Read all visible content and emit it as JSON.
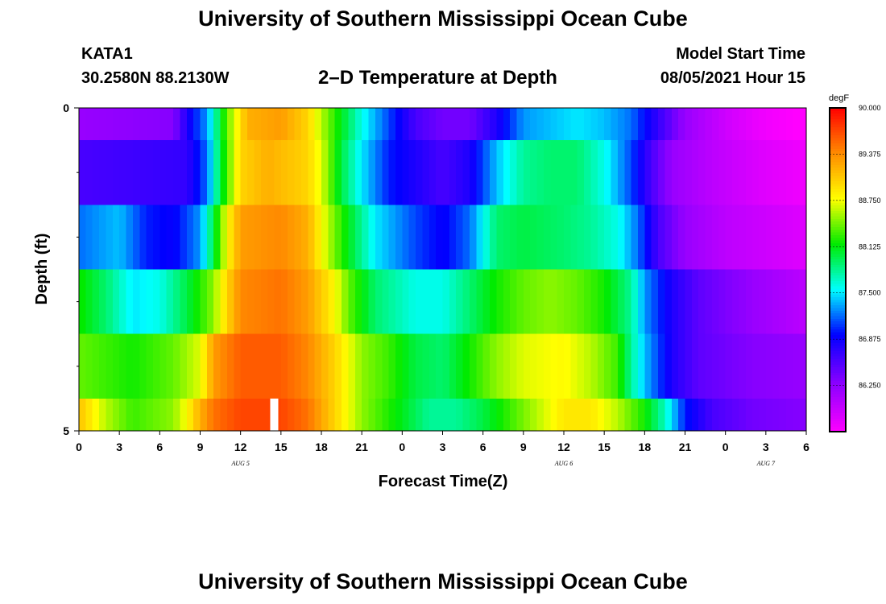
{
  "page": {
    "title_top": "University of Southern Mississippi Ocean Cube",
    "title_bottom": "University of Southern Mississippi Ocean Cube",
    "station": "KATA1",
    "coords": "30.2580N  88.2130W",
    "subtitle": "2–D Temperature at Depth",
    "model_start_label": "Model Start Time",
    "model_start_value": "08/05/2021 Hour 15"
  },
  "chart_data": {
    "type": "heatmap",
    "title": "2–D Temperature at Depth",
    "xlabel": "Forecast Time(Z)",
    "ylabel": "Depth (ft)",
    "x_start_hour": 0,
    "x_end_hour": 54,
    "x_tick_labels": [
      "0",
      "3",
      "6",
      "9",
      "12",
      "15",
      "18",
      "21",
      "0",
      "3",
      "6",
      "9",
      "12",
      "15",
      "18",
      "21",
      "0",
      "3",
      "6"
    ],
    "date_labels": [
      {
        "hour": 12,
        "text": "AUG 5"
      },
      {
        "hour": 36,
        "text": "AUG 6"
      },
      {
        "hour": 51,
        "text": "AUG 7"
      }
    ],
    "y_tick_labels": [
      "0",
      "5"
    ],
    "ylim": [
      0,
      5
    ],
    "layers_depth_ft": [
      0,
      1,
      2,
      3,
      4,
      5
    ],
    "colorbar": {
      "unit": "degF",
      "min": 85.625,
      "max": 90.0,
      "tick_labels": [
        "90.000",
        "89.375",
        "88.750",
        "88.125",
        "87.500",
        "86.875",
        "86.250"
      ]
    },
    "current_time_marker_hour": 14.5,
    "layer_profiles": [
      {
        "depth_top": 0,
        "depth_bottom": 0.5,
        "points": [
          [
            0,
            86.2
          ],
          [
            7,
            86.3
          ],
          [
            8,
            86.8
          ],
          [
            9.5,
            87.3
          ],
          [
            11,
            88.4
          ],
          [
            12.5,
            89.2
          ],
          [
            15,
            89.3
          ],
          [
            17,
            89.0
          ],
          [
            18,
            88.6
          ],
          [
            19.5,
            88.1
          ],
          [
            21,
            87.6
          ],
          [
            23,
            87.1
          ],
          [
            25,
            86.6
          ],
          [
            27,
            86.4
          ],
          [
            29,
            86.4
          ],
          [
            31,
            86.8
          ],
          [
            33,
            87.3
          ],
          [
            35,
            87.4
          ],
          [
            37,
            87.5
          ],
          [
            39,
            87.4
          ],
          [
            41,
            87.2
          ],
          [
            43,
            86.7
          ],
          [
            45,
            86.2
          ],
          [
            48,
            85.9
          ],
          [
            51,
            85.7
          ],
          [
            54,
            85.6
          ]
        ]
      },
      {
        "depth_top": 0.5,
        "depth_bottom": 1.5,
        "points": [
          [
            0,
            86.6
          ],
          [
            8,
            86.7
          ],
          [
            9.5,
            87.2
          ],
          [
            10.5,
            88.0
          ],
          [
            12,
            89.0
          ],
          [
            14,
            89.2
          ],
          [
            17,
            89.0
          ],
          [
            18,
            88.7
          ],
          [
            19.5,
            88.0
          ],
          [
            21,
            87.5
          ],
          [
            23,
            87.0
          ],
          [
            25,
            86.8
          ],
          [
            27,
            86.6
          ],
          [
            29,
            86.8
          ],
          [
            31,
            87.4
          ],
          [
            33,
            87.8
          ],
          [
            35,
            87.9
          ],
          [
            37,
            87.9
          ],
          [
            39,
            87.6
          ],
          [
            41,
            87.1
          ],
          [
            42.5,
            86.6
          ],
          [
            44,
            86.2
          ],
          [
            47,
            86.0
          ],
          [
            51,
            85.8
          ],
          [
            54,
            85.7
          ]
        ]
      },
      {
        "depth_top": 1.5,
        "depth_bottom": 2.5,
        "points": [
          [
            0,
            87.2
          ],
          [
            3,
            87.4
          ],
          [
            5,
            87.0
          ],
          [
            7,
            86.9
          ],
          [
            9,
            87.3
          ],
          [
            10,
            88.0
          ],
          [
            11,
            88.8
          ],
          [
            12,
            89.3
          ],
          [
            15,
            89.4
          ],
          [
            17,
            89.2
          ],
          [
            18.5,
            88.6
          ],
          [
            20,
            88.1
          ],
          [
            22,
            87.5
          ],
          [
            25,
            87.1
          ],
          [
            27,
            86.9
          ],
          [
            29,
            87.2
          ],
          [
            31,
            87.9
          ],
          [
            33,
            88.0
          ],
          [
            36,
            87.9
          ],
          [
            38,
            87.8
          ],
          [
            40,
            87.6
          ],
          [
            41.5,
            87.2
          ],
          [
            43,
            86.6
          ],
          [
            45,
            86.2
          ],
          [
            48,
            86.0
          ],
          [
            51,
            85.9
          ],
          [
            54,
            85.8
          ]
        ]
      },
      {
        "depth_top": 2.5,
        "depth_bottom": 3.5,
        "points": [
          [
            0,
            88.2
          ],
          [
            2,
            87.9
          ],
          [
            4,
            87.5
          ],
          [
            6,
            87.6
          ],
          [
            8,
            88.0
          ],
          [
            10,
            88.5
          ],
          [
            11,
            89.0
          ],
          [
            12,
            89.4
          ],
          [
            15,
            89.5
          ],
          [
            17,
            89.3
          ],
          [
            19,
            88.8
          ],
          [
            20,
            88.4
          ],
          [
            22,
            87.9
          ],
          [
            25,
            87.6
          ],
          [
            27,
            87.6
          ],
          [
            29,
            87.9
          ],
          [
            31,
            88.2
          ],
          [
            33,
            88.4
          ],
          [
            35,
            88.5
          ],
          [
            37,
            88.4
          ],
          [
            39,
            88.2
          ],
          [
            41,
            87.8
          ],
          [
            42,
            87.3
          ],
          [
            44,
            86.8
          ],
          [
            46,
            86.5
          ],
          [
            50,
            86.2
          ],
          [
            54,
            86.0
          ]
        ]
      },
      {
        "depth_top": 3.5,
        "depth_bottom": 4.5,
        "points": [
          [
            0,
            88.4
          ],
          [
            4,
            88.2
          ],
          [
            7,
            88.4
          ],
          [
            9,
            88.7
          ],
          [
            10,
            89.3
          ],
          [
            12,
            89.6
          ],
          [
            15,
            89.6
          ],
          [
            17,
            89.4
          ],
          [
            19,
            89.0
          ],
          [
            21,
            88.5
          ],
          [
            23,
            88.3
          ],
          [
            25,
            88.0
          ],
          [
            27,
            87.9
          ],
          [
            29,
            88.2
          ],
          [
            31,
            88.5
          ],
          [
            33,
            88.7
          ],
          [
            36,
            88.8
          ],
          [
            38,
            88.6
          ],
          [
            40,
            88.3
          ],
          [
            41,
            87.8
          ],
          [
            42,
            87.4
          ],
          [
            44,
            86.8
          ],
          [
            46,
            86.5
          ],
          [
            50,
            86.3
          ],
          [
            54,
            86.2
          ]
        ]
      },
      {
        "depth_top": 4.5,
        "depth_bottom": 5,
        "points": [
          [
            0,
            89.1
          ],
          [
            2,
            88.6
          ],
          [
            4,
            88.3
          ],
          [
            7,
            88.5
          ],
          [
            8,
            88.8
          ],
          [
            9,
            89.2
          ],
          [
            10,
            89.5
          ],
          [
            12,
            89.7
          ],
          [
            15,
            89.7
          ],
          [
            17,
            89.5
          ],
          [
            19,
            89.0
          ],
          [
            21,
            88.5
          ],
          [
            24,
            88.1
          ],
          [
            26,
            87.8
          ],
          [
            28,
            87.8
          ],
          [
            30,
            88.0
          ],
          [
            32,
            88.3
          ],
          [
            34,
            88.6
          ],
          [
            36,
            88.9
          ],
          [
            38,
            88.9
          ],
          [
            40,
            88.6
          ],
          [
            42,
            88.2
          ],
          [
            43.5,
            87.7
          ],
          [
            45,
            87.0
          ],
          [
            47,
            86.6
          ],
          [
            50,
            86.4
          ],
          [
            54,
            86.3
          ]
        ]
      }
    ]
  }
}
